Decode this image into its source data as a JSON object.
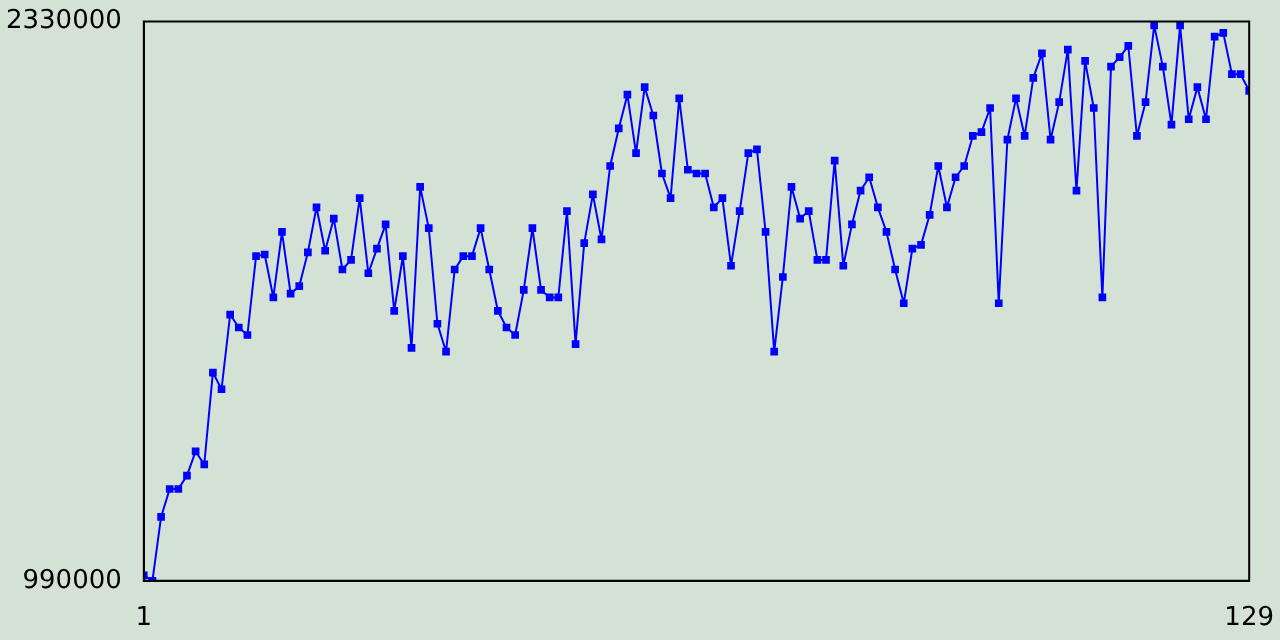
{
  "chart_data": {
    "type": "line",
    "marker": "square",
    "xlim": [
      1,
      129
    ],
    "xticks": [
      1,
      129
    ],
    "ylim": [
      990000,
      2330000
    ],
    "yticks": [
      990000,
      2330000
    ],
    "x": [
      1,
      2,
      3,
      4,
      5,
      6,
      7,
      8,
      9,
      10,
      11,
      12,
      13,
      14,
      15,
      16,
      17,
      18,
      19,
      20,
      21,
      22,
      23,
      24,
      25,
      26,
      27,
      28,
      29,
      30,
      31,
      32,
      33,
      34,
      35,
      36,
      37,
      38,
      39,
      40,
      41,
      42,
      43,
      44,
      45,
      46,
      47,
      48,
      49,
      50,
      51,
      52,
      53,
      54,
      55,
      56,
      57,
      58,
      59,
      60,
      61,
      62,
      63,
      64,
      65,
      66,
      67,
      68,
      69,
      70,
      71,
      72,
      73,
      74,
      75,
      76,
      77,
      78,
      79,
      80,
      81,
      82,
      83,
      84,
      85,
      86,
      87,
      88,
      89,
      90,
      91,
      92,
      93,
      94,
      95,
      96,
      97,
      98,
      99,
      100,
      101,
      102,
      103,
      104,
      105,
      106,
      107,
      108,
      109,
      110,
      111,
      112,
      113,
      114,
      115,
      116,
      117,
      118,
      119,
      120,
      121,
      122,
      123,
      124,
      125,
      126,
      127,
      128,
      129
    ],
    "series": [
      {
        "color": "#0000ff",
        "values": [
          1003000,
          990000,
          1143000,
          1210000,
          1210000,
          1242000,
          1300000,
          1269000,
          1489000,
          1449000,
          1628000,
          1597000,
          1579000,
          1768000,
          1772000,
          1669000,
          1826000,
          1678000,
          1696000,
          1777000,
          1885000,
          1781000,
          1858000,
          1736000,
          1759000,
          1907000,
          1727000,
          1786000,
          1844000,
          1637000,
          1768000,
          1548000,
          1934000,
          1835000,
          1606000,
          1539000,
          1736000,
          1768000,
          1768000,
          1835000,
          1736000,
          1637000,
          1597000,
          1579000,
          1687000,
          1835000,
          1687000,
          1669000,
          1669000,
          1876000,
          1557000,
          1799000,
          1916000,
          1808000,
          1984000,
          2074000,
          2155000,
          2015000,
          2173000,
          2105000,
          1966000,
          1907000,
          2146000,
          1975000,
          1966000,
          1966000,
          1885000,
          1907000,
          1745000,
          1876000,
          2015000,
          2024000,
          1826000,
          1539000,
          1718000,
          1934000,
          1858000,
          1876000,
          1759000,
          1759000,
          1997000,
          1745000,
          1844000,
          1925000,
          1957000,
          1885000,
          1826000,
          1736000,
          1655000,
          1786000,
          1795000,
          1867000,
          1984000,
          1885000,
          1957000,
          1984000,
          2056000,
          2065000,
          2123000,
          1655000,
          2047000,
          2146000,
          2056000,
          2195000,
          2254000,
          2047000,
          2137000,
          2263000,
          1925000,
          2236000,
          2123000,
          1669000,
          2222000,
          2245000,
          2272000,
          2056000,
          2137000,
          2321000,
          2222000,
          2083000,
          2321000,
          2096000,
          2173000,
          2096000,
          2294000,
          2303000,
          2204000,
          2204000,
          2164000
        ]
      }
    ]
  }
}
